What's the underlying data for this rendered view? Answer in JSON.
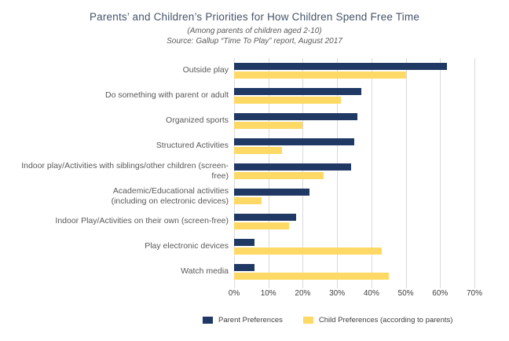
{
  "title": "Parents’ and Children’s Priorities for How Children Spend Free Time",
  "subtitle": "(Among parents of children aged 2-10)",
  "source": "Source: Gallup “Time To Play” report, August 2017",
  "colors": {
    "parent_series": "#1F3864",
    "child_series": "#FFD966",
    "gridline": "#D9D9D9",
    "title_text": "#44546A",
    "axis_text": "#404040",
    "category_text": "#595959"
  },
  "chart_data": {
    "type": "bar",
    "orientation": "horizontal",
    "title": "Parents’ and Children’s Priorities for How Children Spend Free Time",
    "subtitle": "(Among parents of children aged 2-10)",
    "source": "Source: Gallup “Time To Play” report, August 2017",
    "categories": [
      "Outside play",
      "Do something with parent or adult",
      "Organized sports",
      "Structured Activities",
      "Indoor play/Activities with siblings/other children (screen-\nfree)",
      "Academic/Educational activities\n(including on electronic devices)",
      "Indoor Play/Activities on their own (screen-free)",
      "Play electronic devices",
      "Watch media"
    ],
    "series": [
      {
        "name": "Parent Preferences",
        "color": "#1F3864",
        "values": [
          62,
          37,
          36,
          35,
          34,
          22,
          18,
          6,
          6
        ]
      },
      {
        "name": "Child Preferences (according to parents)",
        "color": "#FFD966",
        "values": [
          50,
          31,
          20,
          14,
          26,
          8,
          16,
          43,
          45
        ]
      }
    ],
    "x_ticks": [
      "0%",
      "10%",
      "20%",
      "30%",
      "40%",
      "50%",
      "60%",
      "70%"
    ],
    "xlim": [
      0,
      70
    ],
    "xlabel": "",
    "ylabel": "",
    "grid": true,
    "legend_position": "bottom"
  }
}
